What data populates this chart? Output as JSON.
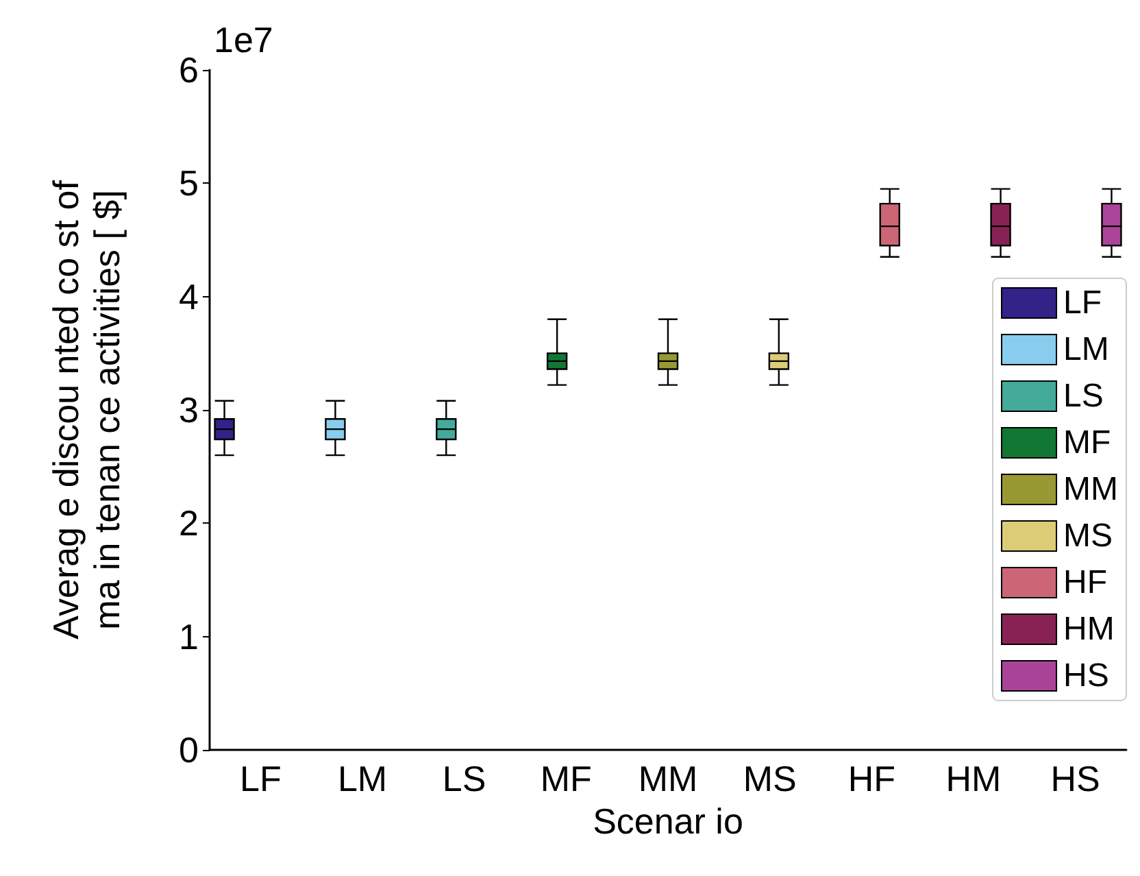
{
  "chart_data": {
    "type": "box",
    "xlabel": "Scenar io",
    "ylabel": "Averag e discou nted co st of\nma in tenan ce activities [ $]",
    "annotations": [
      "1e7"
    ],
    "categories": [
      "LF",
      "LM",
      "LS",
      "MF",
      "MM",
      "MS",
      "HF",
      "HM",
      "HS"
    ],
    "series": [
      {
        "name": "LF",
        "color": "#332288",
        "boxes": [
          {
            "low": 2.6,
            "q1": 2.74,
            "median": 2.83,
            "q3": 2.92,
            "high": 3.08
          },
          null,
          null,
          null,
          null,
          null,
          null,
          null,
          null
        ]
      },
      {
        "name": "LM",
        "color": "#88ccee",
        "boxes": [
          null,
          {
            "low": 2.6,
            "q1": 2.74,
            "median": 2.83,
            "q3": 2.92,
            "high": 3.08
          },
          null,
          null,
          null,
          null,
          null,
          null,
          null
        ]
      },
      {
        "name": "LS",
        "color": "#44aa99",
        "boxes": [
          null,
          null,
          {
            "low": 2.6,
            "q1": 2.74,
            "median": 2.83,
            "q3": 2.92,
            "high": 3.08
          },
          null,
          null,
          null,
          null,
          null,
          null
        ]
      },
      {
        "name": "MF",
        "color": "#117733",
        "boxes": [
          null,
          null,
          null,
          {
            "low": 3.22,
            "q1": 3.36,
            "median": 3.43,
            "q3": 3.5,
            "high": 3.8
          },
          null,
          null,
          null,
          null,
          null
        ]
      },
      {
        "name": "MM",
        "color": "#999933",
        "boxes": [
          null,
          null,
          null,
          null,
          {
            "low": 3.22,
            "q1": 3.36,
            "median": 3.43,
            "q3": 3.5,
            "high": 3.8
          },
          null,
          null,
          null,
          null
        ]
      },
      {
        "name": "MS",
        "color": "#ddcc77",
        "boxes": [
          null,
          null,
          null,
          null,
          null,
          {
            "low": 3.22,
            "q1": 3.36,
            "median": 3.43,
            "q3": 3.5,
            "high": 3.8
          },
          null,
          null,
          null
        ]
      },
      {
        "name": "HF",
        "color": "#cc6677",
        "boxes": [
          null,
          null,
          null,
          null,
          null,
          null,
          {
            "low": 4.35,
            "q1": 4.45,
            "median": 4.62,
            "q3": 4.82,
            "high": 4.95
          },
          null,
          null
        ]
      },
      {
        "name": "HM",
        "color": "#882255",
        "boxes": [
          null,
          null,
          null,
          null,
          null,
          null,
          null,
          {
            "low": 4.35,
            "q1": 4.45,
            "median": 4.62,
            "q3": 4.82,
            "high": 4.95
          },
          null
        ]
      },
      {
        "name": "HS",
        "color": "#aa4499",
        "boxes": [
          null,
          null,
          null,
          null,
          null,
          null,
          null,
          null,
          {
            "low": 4.35,
            "q1": 4.45,
            "median": 4.62,
            "q3": 4.82,
            "high": 4.95
          }
        ]
      }
    ],
    "ylim": [
      0,
      6
    ],
    "yticks": [
      0,
      1,
      2,
      3,
      4,
      5,
      6
    ],
    "grid": false,
    "legend": "right"
  }
}
